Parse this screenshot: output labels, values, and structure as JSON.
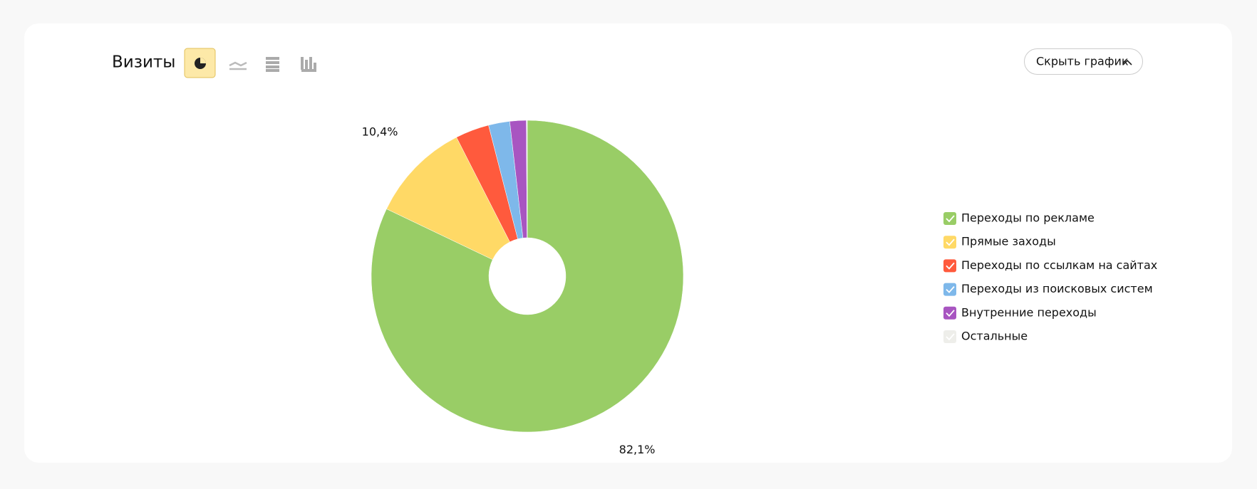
{
  "chart_data": {
    "type": "pie",
    "title": "Визиты",
    "categories": [
      "Переходы по рекламе",
      "Прямые заходы",
      "Переходы по ссылкам на сайтах",
      "Переходы из поисковых систем",
      "Внутренние переходы",
      "Остальные"
    ],
    "values": [
      82.1,
      10.4,
      3.5,
      2.2,
      1.7,
      0.1
    ],
    "value_labels": [
      "82,1%",
      "10,4%",
      null,
      null,
      null,
      null
    ],
    "colors": [
      "#99cd66",
      "#ffd966",
      "#ff5a3d",
      "#7eb8ea",
      "#a855c1",
      "#eeeeea"
    ],
    "legend": "right"
  },
  "toolbar": {
    "hide_chart": "Скрыть график"
  }
}
